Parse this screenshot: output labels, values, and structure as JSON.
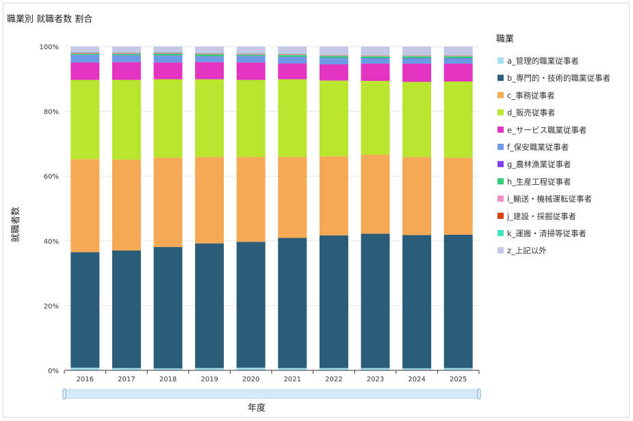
{
  "chart_data": {
    "type": "bar",
    "stacked": true,
    "normalized": true,
    "title": "職業別 就職者数 割合",
    "xlabel": "年度",
    "ylabel": "就職者数",
    "ylim": [
      0,
      100
    ],
    "yticks": [
      "0%",
      "20%",
      "40%",
      "60%",
      "80%",
      "100%"
    ],
    "legend_title": "職業",
    "legend_position": "right",
    "categories": [
      "2016",
      "2017",
      "2018",
      "2019",
      "2020",
      "2021",
      "2022",
      "2023",
      "2024",
      "2025"
    ],
    "series": [
      {
        "name": "a_管理的職業従事者",
        "color": "#a6dcef",
        "values": [
          0.8,
          0.7,
          0.6,
          0.7,
          0.8,
          0.7,
          0.7,
          0.7,
          0.6,
          0.7
        ]
      },
      {
        "name": "b_専門的・技術的職業従事者",
        "color": "#2a5d78",
        "values": [
          35.7,
          36.3,
          37.5,
          38.5,
          38.9,
          40.2,
          41.0,
          41.5,
          41.2,
          41.2
        ]
      },
      {
        "name": "c_事務従事者",
        "color": "#f5a954",
        "values": [
          28.7,
          28.1,
          27.6,
          26.7,
          26.2,
          25.0,
          24.4,
          24.4,
          24.1,
          23.8
        ]
      },
      {
        "name": "d_販売従事者",
        "color": "#b9e52f",
        "values": [
          24.5,
          24.6,
          24.2,
          24.0,
          23.8,
          24.0,
          23.4,
          22.8,
          23.2,
          23.5
        ]
      },
      {
        "name": "e_サービス職業従事者",
        "color": "#e234c0",
        "values": [
          5.4,
          5.5,
          5.2,
          5.3,
          5.4,
          4.9,
          5.0,
          5.3,
          5.6,
          5.5
        ]
      },
      {
        "name": "f_保安職業従事者",
        "color": "#6b9be6",
        "values": [
          2.2,
          2.0,
          2.0,
          1.7,
          1.9,
          1.9,
          1.9,
          1.6,
          1.6,
          1.6
        ]
      },
      {
        "name": "g_農林漁業従事者",
        "color": "#7e3de6",
        "values": [
          0.1,
          0.1,
          0.1,
          0.1,
          0.1,
          0.1,
          0.1,
          0.1,
          0.1,
          0.1
        ]
      },
      {
        "name": "h_生産工程従事者",
        "color": "#35c97a",
        "values": [
          0.4,
          0.4,
          0.6,
          0.6,
          0.4,
          0.6,
          0.6,
          0.6,
          0.6,
          0.6
        ]
      },
      {
        "name": "i_輸送・機械運転従事者",
        "color": "#f08fc8",
        "values": [
          0.2,
          0.2,
          0.2,
          0.2,
          0.2,
          0.2,
          0.2,
          0.2,
          0.2,
          0.2
        ]
      },
      {
        "name": "j_建設・採掘従事者",
        "color": "#d94010",
        "values": [
          0.1,
          0.1,
          0.1,
          0.1,
          0.1,
          0.1,
          0.1,
          0.1,
          0.1,
          0.1
        ]
      },
      {
        "name": "k_運搬・清掃等従事者",
        "color": "#3be8c0",
        "values": [
          0.1,
          0.1,
          0.1,
          0.1,
          0.1,
          0.1,
          0.1,
          0.1,
          0.1,
          0.1
        ]
      },
      {
        "name": "z_上記以外",
        "color": "#c5c7e6",
        "values": [
          1.8,
          1.9,
          1.8,
          2.0,
          2.1,
          2.2,
          2.5,
          2.6,
          2.6,
          2.6
        ]
      }
    ]
  },
  "range_slider": {
    "start": "2016",
    "end": "2025",
    "fill": "#d4eaf7"
  }
}
